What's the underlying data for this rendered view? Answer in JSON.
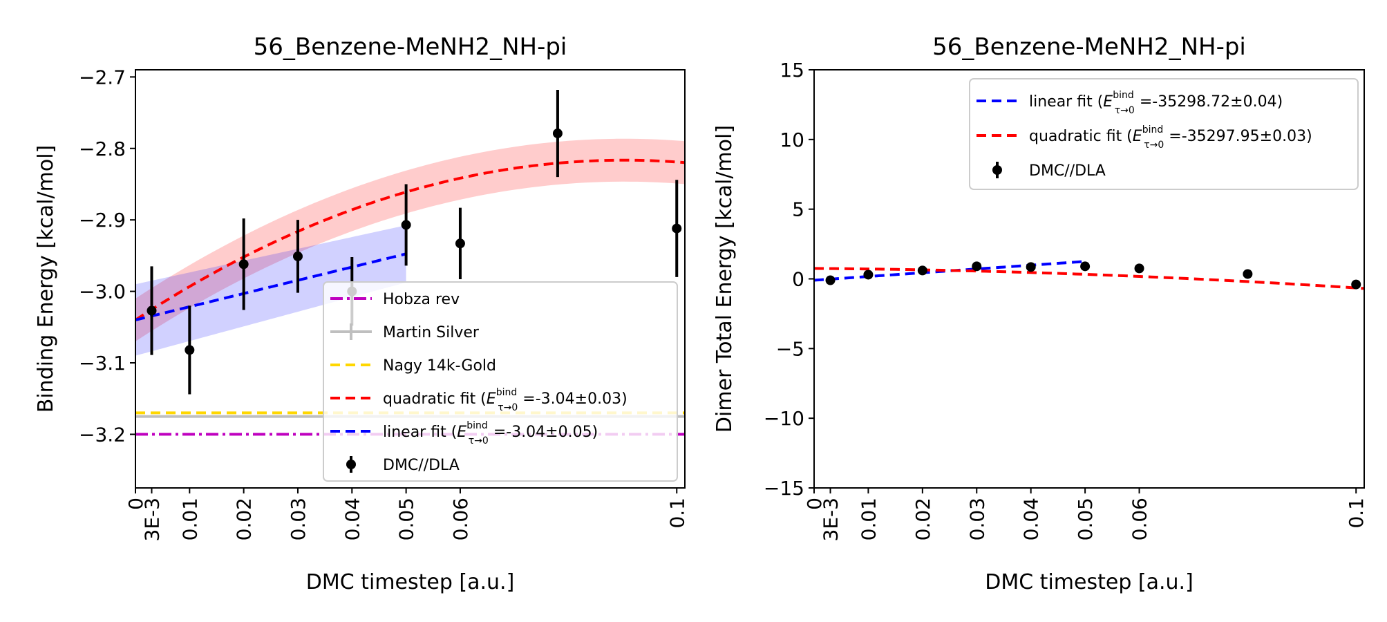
{
  "chart_data": [
    {
      "type": "scatter",
      "title": "56_Benzene-MeNH2_NH-pi",
      "xlabel": "DMC timestep [a.u.]",
      "ylabel": "Binding Energy [kcal/mol]",
      "xlim": [
        0,
        0.1015
      ],
      "ylim": [
        -3.275,
        -2.69
      ],
      "xticks": [
        0,
        0.003,
        0.01,
        0.02,
        0.03,
        0.04,
        0.05,
        0.06,
        0.1
      ],
      "xticklabels": [
        "0",
        "3E-3",
        "0.01",
        "0.02",
        "0.03",
        "0.04",
        "0.05",
        "0.06",
        "0.1"
      ],
      "yticks": [
        -3.2,
        -3.1,
        -3.0,
        -2.9,
        -2.8,
        -2.7
      ],
      "yticklabels": [
        "−3.2",
        "−3.1",
        "−3.0",
        "−2.9",
        "−2.8",
        "−2.7"
      ],
      "grid": false,
      "legend_position": "lower-right",
      "points": {
        "name": "DMC//DLA",
        "x": [
          0.003,
          0.01,
          0.02,
          0.03,
          0.04,
          0.05,
          0.06,
          0.078,
          0.1
        ],
        "y": [
          -3.027,
          -3.082,
          -2.962,
          -2.951,
          -3.0,
          -2.907,
          -2.933,
          -2.779,
          -2.912
        ],
        "err": [
          0.062,
          0.062,
          0.064,
          0.051,
          0.048,
          0.057,
          0.05,
          0.061,
          0.068
        ]
      },
      "quadratic_fit": {
        "label": "quadratic fit",
        "label_suffix": "=-3.04±0.03)",
        "coeffs": [
          -3.04,
          4.95,
          -27.4
        ],
        "band": 0.03,
        "x_range": [
          0,
          0.1015
        ],
        "color": "#ff0000"
      },
      "linear_fit": {
        "label": "linear fit",
        "label_suffix": "=-3.04±0.05)",
        "coeffs": [
          -3.04,
          1.85
        ],
        "band_intercept": 0.05,
        "band_at_end": 0.04,
        "x_range": [
          0,
          0.05
        ],
        "color": "#0000ff"
      },
      "reference_lines": [
        {
          "name": "Hobza rev",
          "y": -3.2,
          "color": "#bf00bf",
          "style": "dashdot"
        },
        {
          "name": "Martin Silver",
          "y": -3.175,
          "color": "#bfbfbf",
          "style": "solid-errorbar"
        },
        {
          "name": "Nagy 14k-Gold",
          "y": -3.17,
          "color": "#ffd700",
          "style": "dashed"
        }
      ],
      "legend_order": [
        "Hobza rev",
        "Martin Silver",
        "Nagy 14k-Gold",
        "quadratic fit",
        "linear fit",
        "DMC//DLA"
      ]
    },
    {
      "type": "scatter",
      "title": "56_Benzene-MeNH2_NH-pi",
      "xlabel": "DMC timestep [a.u.]",
      "ylabel": "Dimer Total Energy [kcal/mol]",
      "xlim": [
        0,
        0.1015
      ],
      "ylim": [
        -15,
        15
      ],
      "xticks": [
        0,
        0.003,
        0.01,
        0.02,
        0.03,
        0.04,
        0.05,
        0.06,
        0.1
      ],
      "xticklabels": [
        "0",
        "3E-3",
        "0.01",
        "0.02",
        "0.03",
        "0.04",
        "0.05",
        "0.06",
        "0.1"
      ],
      "yticks": [
        -15,
        -10,
        -5,
        0,
        5,
        10,
        15
      ],
      "yticklabels": [
        "−15",
        "−10",
        "−5",
        "0",
        "5",
        "10",
        "15"
      ],
      "grid": false,
      "legend_position": "upper-right",
      "points": {
        "name": "DMC//DLA",
        "x": [
          0.003,
          0.01,
          0.02,
          0.03,
          0.04,
          0.05,
          0.06,
          0.08,
          0.1
        ],
        "y": [
          -0.1,
          0.3,
          0.6,
          0.9,
          0.85,
          0.9,
          0.75,
          0.35,
          -0.4
        ],
        "err": [
          0.15,
          0.15,
          0.15,
          0.15,
          0.15,
          0.15,
          0.15,
          0.15,
          0.15
        ]
      },
      "linear_fit": {
        "label": "linear fit",
        "label_suffix": "=-35298.72±0.04)",
        "coeffs": [
          -0.1,
          27.0
        ],
        "x_range": [
          0,
          0.05
        ],
        "color": "#0000ff"
      },
      "quadratic_fit": {
        "label": "quadratic fit",
        "label_suffix": "=-35297.95±0.03)",
        "coeffs": [
          0.75,
          -3.0,
          -110.0
        ],
        "x_range": [
          0,
          0.1015
        ],
        "color": "#ff0000"
      },
      "legend_order": [
        "linear fit",
        "quadratic fit",
        "DMC//DLA"
      ]
    }
  ],
  "legend_math": {
    "base": "E",
    "super": "bind",
    "sub": "τ→0",
    "open": "("
  }
}
